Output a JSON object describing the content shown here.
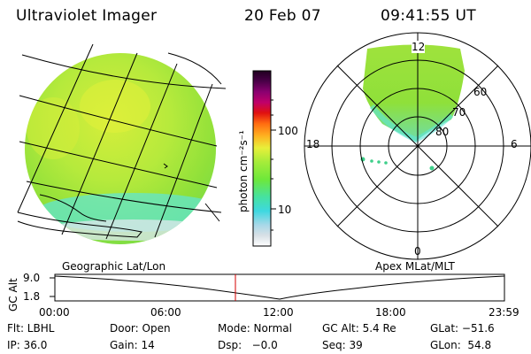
{
  "header": {
    "instrument": "Ultraviolet Imager",
    "date": "20 Feb 07",
    "time": "09:41:55 UT"
  },
  "colorbar": {
    "unit_label": "photon cm⁻²s⁻¹",
    "ticks": [
      "100",
      "10"
    ]
  },
  "polar": {
    "mlt_labels": [
      "12",
      "18",
      "6",
      "0"
    ],
    "lat_labels": [
      "60",
      "70",
      "80"
    ]
  },
  "panels": {
    "left_label": "Geographic Lat/Lon",
    "right_label": "Apex MLat/MLT"
  },
  "altitude_plot": {
    "ylabel": "GC Alt",
    "yticks": [
      "9.0",
      "1.8"
    ],
    "xticks": [
      "00:00",
      "06:00",
      "12:00",
      "18:00",
      "23:59"
    ]
  },
  "info": {
    "flt": "Flt: LBHL",
    "door": "Door: Open",
    "mode": "Mode: Normal",
    "gc_alt": "GC Alt: 5.4 Re",
    "glat": "GLat: −51.6",
    "ip": "IP: 36.0",
    "gain": "Gain: 14",
    "dsp": "Dsp:   −0.0",
    "seq": "Seq: 39",
    "glon": "GLon:  54.8"
  },
  "colors": {
    "image_green": "#8fe03a",
    "image_yellow": "#d6ee3a",
    "image_cyan": "#5ee6d8",
    "time_marker": "#d40000"
  }
}
